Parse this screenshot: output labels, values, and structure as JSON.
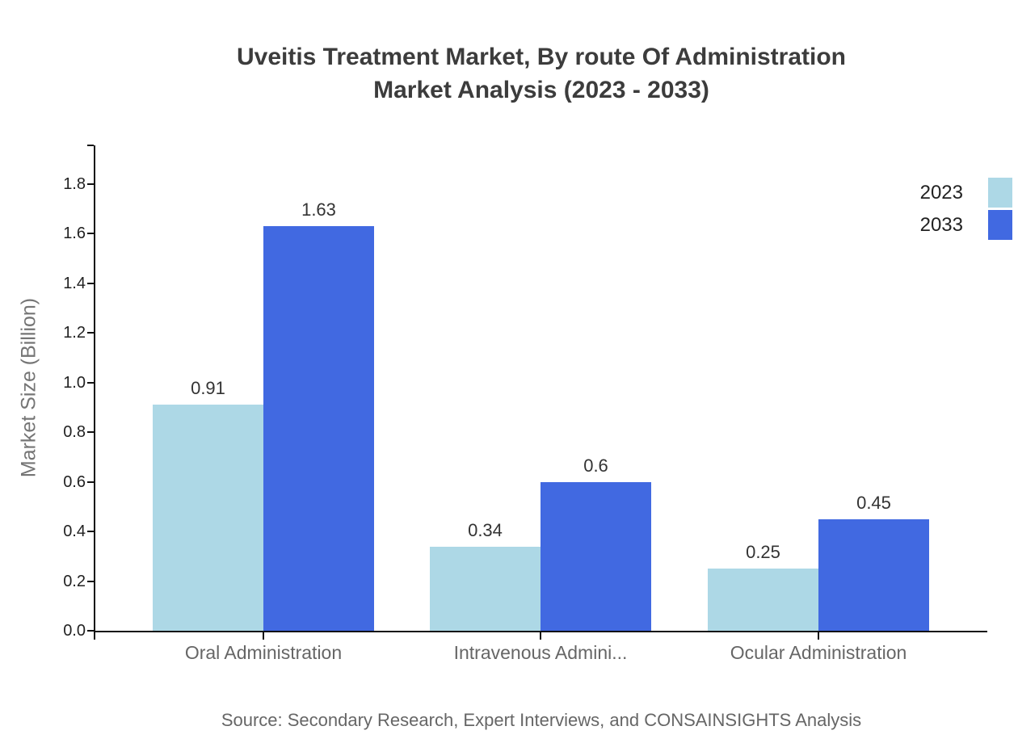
{
  "title": {
    "line1": "Uveitis Treatment Market, By route Of Administration",
    "line2": "Market Analysis (2023 - 2033)"
  },
  "source": "Source: Secondary Research, Expert Interviews, and CONSAINSIGHTS Analysis",
  "chart_data": {
    "type": "bar",
    "title": "Uveitis Treatment Market, By route Of Administration Market Analysis (2023 - 2033)",
    "categories": [
      "Oral Administration",
      "Intravenous Admini...",
      "Ocular Administration"
    ],
    "series": [
      {
        "name": "2023",
        "color": "#ADD8E6",
        "values": [
          0.91,
          0.34,
          0.25
        ],
        "labels": [
          "0.91",
          "0.34",
          "0.25"
        ]
      },
      {
        "name": "2033",
        "color": "#4169E1",
        "values": [
          1.63,
          0.6,
          0.45
        ],
        "labels": [
          "1.63",
          "0.6",
          "0.45"
        ]
      }
    ],
    "xlabel": "",
    "ylabel": "Market Size (Billion)",
    "ylim": [
      0,
      1.8
    ],
    "ytick_step": 0.2,
    "ytick_labels": [
      "0.0",
      "0.2",
      "0.4",
      "0.6",
      "0.8",
      "1.0",
      "1.2",
      "1.4",
      "1.6",
      "1.8"
    ],
    "legend_position": "top-right",
    "grid": false
  }
}
